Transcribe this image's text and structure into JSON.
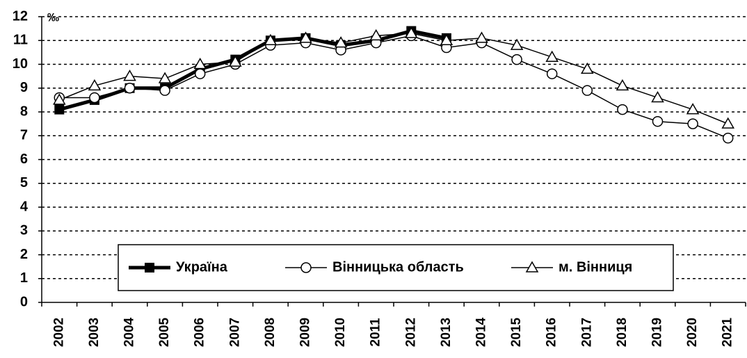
{
  "chart_data": {
    "type": "line",
    "unit": "‰",
    "categories": [
      "2002",
      "2003",
      "2004",
      "2005",
      "2006",
      "2007",
      "2008",
      "2009",
      "2010",
      "2011",
      "2012",
      "2013",
      "2014",
      "2015",
      "2016",
      "2017",
      "2018",
      "2019",
      "2020",
      "2021"
    ],
    "series": [
      {
        "name": "Україна",
        "color": "#000000",
        "marker": "square",
        "values": [
          8.1,
          8.5,
          9.0,
          9.0,
          9.8,
          10.2,
          11.0,
          11.1,
          10.8,
          11.0,
          11.4,
          11.1,
          null,
          null,
          null,
          null,
          null,
          null,
          null,
          null
        ]
      },
      {
        "name": "Вінницька область",
        "color": "#000000",
        "marker": "circle",
        "values": [
          8.6,
          8.6,
          9.0,
          8.9,
          9.6,
          10.0,
          10.8,
          10.9,
          10.6,
          10.9,
          11.2,
          10.7,
          10.9,
          10.2,
          9.6,
          8.9,
          8.1,
          7.6,
          7.5,
          6.9
        ]
      },
      {
        "name": "м. Вінниця",
        "color": "#000000",
        "marker": "triangle",
        "values": [
          8.5,
          9.1,
          9.5,
          9.4,
          10.0,
          10.1,
          11.0,
          11.1,
          10.9,
          11.2,
          11.3,
          11.0,
          11.1,
          10.8,
          10.3,
          9.8,
          9.1,
          8.6,
          8.1,
          7.5
        ]
      }
    ],
    "ylim": [
      0,
      12
    ],
    "yticks": [
      0,
      1,
      2,
      3,
      4,
      5,
      6,
      7,
      8,
      9,
      10,
      11,
      12
    ],
    "grid": true
  }
}
